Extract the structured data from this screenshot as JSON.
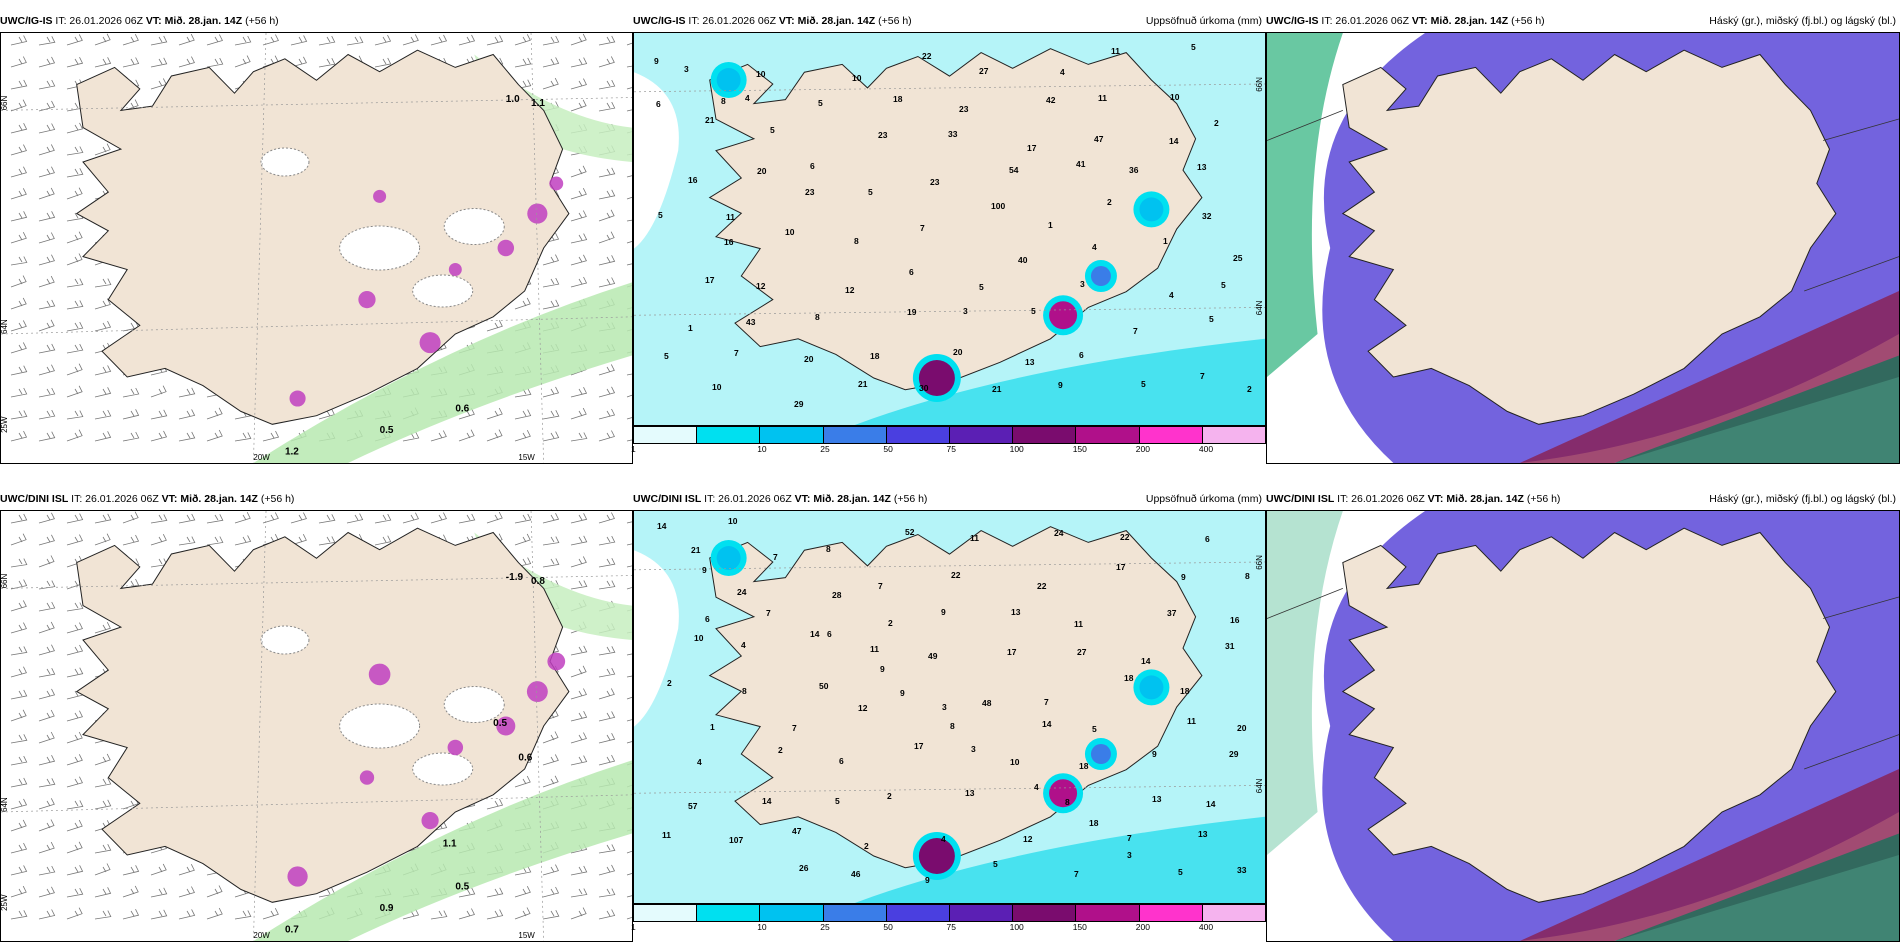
{
  "colors": {
    "land": "#f1e4d5",
    "sea_precip": "#b5f4f8",
    "legend_bins": [
      "#e4fbfd",
      "#00e0f0",
      "#00c2f0",
      "#3a7de8",
      "#4a3fe0",
      "#5b1fb4",
      "#7a0c6e",
      "#b0108a",
      "#ff33cc",
      "#f5b3ee"
    ],
    "phase_snow": "#5a48d8",
    "phase_sleet": "#8a1e4f",
    "phase_rain": "#2ab07a"
  },
  "panels": [
    {
      "id": "top-left",
      "model": "UWC/IG-IS",
      "it": " IT: 26.01.2026 06Z ",
      "vt": "VT: Mið. 28.jan. 14Z",
      "lead": " (+56 h)",
      "right_title": "",
      "map_type": "wind",
      "lat_labels": [
        "66N",
        "64N",
        "25W"
      ],
      "lon_labels": [
        "20W",
        "15W"
      ],
      "values": [
        "1.0",
        "1.1",
        "0.5",
        "0.6",
        "1.2"
      ]
    },
    {
      "id": "top-middle",
      "model": "UWC/IG-IS",
      "it": " IT: 26.01.2026 06Z ",
      "vt": "VT: Mið. 28.jan. 14Z",
      "lead": " (+56 h)",
      "right_title": "Uppsöfnuð úrkoma (mm)",
      "map_type": "precip",
      "lat_labels": [
        "66N",
        "64N"
      ],
      "values": [
        "9",
        "8",
        "5",
        "6",
        "5",
        "7",
        "5",
        "5",
        "6",
        "5",
        "5",
        "6",
        "21",
        "20",
        "23",
        "8",
        "6",
        "3",
        "13",
        "9",
        "11",
        "10",
        "2",
        "16",
        "11",
        "10",
        "12",
        "19",
        "20",
        "21",
        "4",
        "11",
        "14",
        "13",
        "5",
        "16",
        "12",
        "8",
        "18",
        "30",
        "27",
        "42",
        "47",
        "36",
        "32",
        "25",
        "17",
        "43",
        "20",
        "21",
        "22",
        "23",
        "17",
        "41",
        "2",
        "1",
        "5",
        "1",
        "7",
        "29",
        "10",
        "18",
        "33",
        "54",
        "1",
        "4",
        "4",
        "5",
        "5",
        "10",
        "10",
        "5",
        "23",
        "23",
        "100",
        "40",
        "3",
        "7",
        "7",
        "2",
        "3",
        "4"
      ],
      "legend_labels": [
        "1",
        "10",
        "25",
        "50",
        "75",
        "100",
        "150",
        "200",
        "400"
      ]
    },
    {
      "id": "top-right",
      "model": "UWC/IG-IS",
      "it": " IT: 26.01.2026 06Z ",
      "vt": "VT: Mið. 28.jan. 14Z",
      "lead": " (+56 h)",
      "right_title": "Háský (gr.), miðský (fj.bl.) og lágský (bl.)",
      "map_type": "phase"
    },
    {
      "id": "bottom-left",
      "model": "UWC/DINI ISL",
      "it": " IT: 26.01.2026 06Z ",
      "vt": "VT: Mið. 28.jan. 14Z",
      "lead": " (+56 h)",
      "right_title": "",
      "map_type": "wind",
      "lat_labels": [
        "66N",
        "64N",
        "25W"
      ],
      "lon_labels": [
        "20W",
        "15W"
      ],
      "values": [
        "-1.9",
        "0.8",
        "0.9",
        "0.5",
        "0.7",
        "0.5",
        "0.6",
        "1.1"
      ]
    },
    {
      "id": "bottom-middle",
      "model": "UWC/DINI ISL",
      "it": " IT: 26.01.2026 06Z ",
      "vt": "VT: Mið. 28.jan. 14Z",
      "lead": " (+56 h)",
      "right_title": "Uppsöfnuð úrkoma (mm)",
      "map_type": "precip",
      "lat_labels": [
        "66N",
        "64N"
      ],
      "values": [
        "14",
        "9",
        "7",
        "6",
        "9",
        "3",
        "3",
        "4",
        "18",
        "3",
        "6",
        "8",
        "6",
        "4",
        "50",
        "12",
        "17",
        "13",
        "12",
        "7",
        "22",
        "9",
        "16",
        "10",
        "8",
        "7",
        "6",
        "2",
        "4",
        "5",
        "24",
        "17",
        "37",
        "31",
        "2",
        "1",
        "2",
        "5",
        "2",
        "9",
        "11",
        "22",
        "11",
        "14",
        "18",
        "20",
        "4",
        "14",
        "47",
        "46",
        "52",
        "22",
        "13",
        "27",
        "18",
        "11",
        "29",
        "57",
        "107",
        "26",
        "8",
        "7",
        "9",
        "17",
        "7",
        "5",
        "9",
        "14",
        "11",
        "10",
        "7",
        "28",
        "2",
        "49",
        "48",
        "14",
        "18",
        "13",
        "13",
        "33",
        "21",
        "24",
        "14",
        "11",
        "9",
        "8",
        "10",
        "8",
        "7",
        "5"
      ],
      "legend_labels": [
        "1",
        "10",
        "25",
        "50",
        "75",
        "100",
        "150",
        "200",
        "400"
      ]
    },
    {
      "id": "bottom-right",
      "model": "UWC/DINI ISL",
      "it": " IT: 26.01.2026 06Z ",
      "vt": "VT: Mið. 28.jan. 14Z",
      "lead": " (+56 h)",
      "right_title": "Háský (gr.), miðský (fj.bl.) og lágský (bl.)",
      "map_type": "phase"
    }
  ]
}
